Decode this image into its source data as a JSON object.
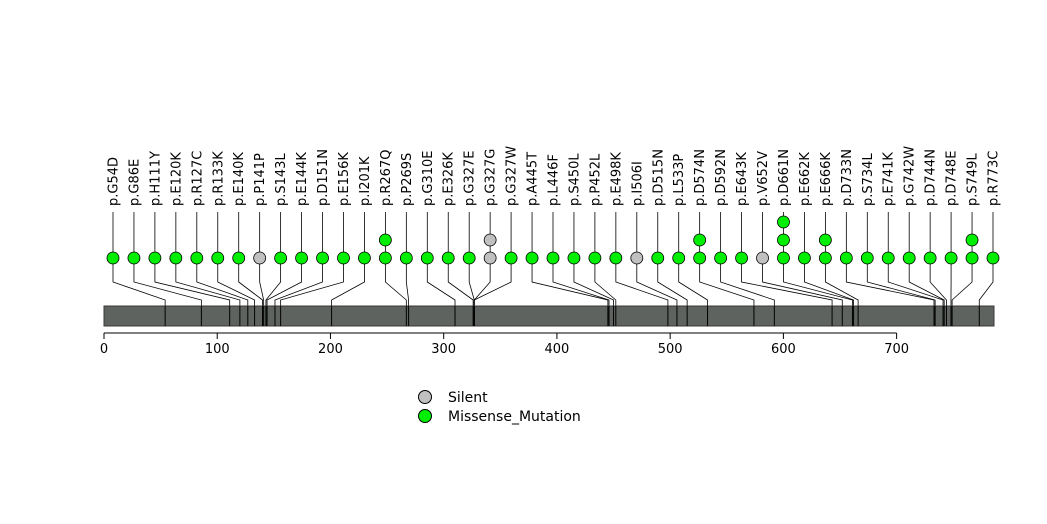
{
  "chart_data": {
    "type": "lollipop",
    "title": "",
    "xlabel": "",
    "ylabel": "",
    "protein_length": 786,
    "xlim": [
      0,
      786
    ],
    "x_ticks": [
      0,
      100,
      200,
      300,
      400,
      500,
      600,
      700
    ],
    "x_tick_labels": [
      "0",
      "100",
      "200",
      "300",
      "400",
      "500",
      "600",
      "700"
    ],
    "legend_position": "bottom-center",
    "legend": [
      {
        "name": "Silent",
        "color": "#c0c0c0"
      },
      {
        "name": "Missense_Mutation",
        "color": "#00ee00"
      }
    ],
    "mutations": [
      {
        "label": "p.G54D",
        "position": 54,
        "types": [
          "Missense_Mutation"
        ]
      },
      {
        "label": "p.G86E",
        "position": 86,
        "types": [
          "Missense_Mutation"
        ]
      },
      {
        "label": "p.H111Y",
        "position": 111,
        "types": [
          "Missense_Mutation"
        ]
      },
      {
        "label": "p.E120K",
        "position": 120,
        "types": [
          "Missense_Mutation"
        ]
      },
      {
        "label": "p.R127C",
        "position": 127,
        "types": [
          "Missense_Mutation"
        ]
      },
      {
        "label": "p.R133K",
        "position": 133,
        "types": [
          "Missense_Mutation"
        ]
      },
      {
        "label": "p.E140K",
        "position": 140,
        "types": [
          "Missense_Mutation"
        ]
      },
      {
        "label": "p.P141P",
        "position": 141,
        "types": [
          "Silent"
        ]
      },
      {
        "label": "p.S143L",
        "position": 143,
        "types": [
          "Missense_Mutation"
        ]
      },
      {
        "label": "p.E144K",
        "position": 144,
        "types": [
          "Missense_Mutation"
        ]
      },
      {
        "label": "p.D151N",
        "position": 151,
        "types": [
          "Missense_Mutation"
        ]
      },
      {
        "label": "p.E156K",
        "position": 156,
        "types": [
          "Missense_Mutation"
        ]
      },
      {
        "label": "p.I201K",
        "position": 201,
        "types": [
          "Missense_Mutation"
        ]
      },
      {
        "label": "p.R267Q",
        "position": 267,
        "types": [
          "Missense_Mutation",
          "Missense_Mutation"
        ]
      },
      {
        "label": "p.P269S",
        "position": 269,
        "types": [
          "Missense_Mutation"
        ]
      },
      {
        "label": "p.G310E",
        "position": 310,
        "types": [
          "Missense_Mutation"
        ]
      },
      {
        "label": "p.E326K",
        "position": 326,
        "types": [
          "Missense_Mutation"
        ]
      },
      {
        "label": "p.G327E",
        "position": 327,
        "types": [
          "Missense_Mutation"
        ]
      },
      {
        "label": "p.G327G",
        "position": 327,
        "types": [
          "Silent",
          "Silent"
        ]
      },
      {
        "label": "p.G327W",
        "position": 327,
        "types": [
          "Missense_Mutation"
        ]
      },
      {
        "label": "p.A445T",
        "position": 445,
        "types": [
          "Missense_Mutation"
        ]
      },
      {
        "label": "p.L446F",
        "position": 446,
        "types": [
          "Missense_Mutation"
        ]
      },
      {
        "label": "p.S450L",
        "position": 450,
        "types": [
          "Missense_Mutation"
        ]
      },
      {
        "label": "p.P452L",
        "position": 452,
        "types": [
          "Missense_Mutation"
        ]
      },
      {
        "label": "p.E498K",
        "position": 498,
        "types": [
          "Missense_Mutation"
        ]
      },
      {
        "label": "p.I506I",
        "position": 506,
        "types": [
          "Silent"
        ]
      },
      {
        "label": "p.D515N",
        "position": 515,
        "types": [
          "Missense_Mutation"
        ]
      },
      {
        "label": "p.L533P",
        "position": 533,
        "types": [
          "Missense_Mutation"
        ]
      },
      {
        "label": "p.D574N",
        "position": 574,
        "types": [
          "Missense_Mutation",
          "Missense_Mutation"
        ]
      },
      {
        "label": "p.D592N",
        "position": 592,
        "types": [
          "Missense_Mutation"
        ]
      },
      {
        "label": "p.E643K",
        "position": 643,
        "types": [
          "Missense_Mutation"
        ]
      },
      {
        "label": "p.V652V",
        "position": 652,
        "types": [
          "Silent"
        ]
      },
      {
        "label": "p.D661N",
        "position": 661,
        "types": [
          "Missense_Mutation",
          "Missense_Mutation",
          "Missense_Mutation"
        ]
      },
      {
        "label": "p.E662K",
        "position": 662,
        "types": [
          "Missense_Mutation"
        ]
      },
      {
        "label": "p.E666K",
        "position": 666,
        "types": [
          "Missense_Mutation",
          "Missense_Mutation"
        ]
      },
      {
        "label": "p.D733N",
        "position": 733,
        "types": [
          "Missense_Mutation"
        ]
      },
      {
        "label": "p.S734L",
        "position": 734,
        "types": [
          "Missense_Mutation"
        ]
      },
      {
        "label": "p.E741K",
        "position": 741,
        "types": [
          "Missense_Mutation"
        ]
      },
      {
        "label": "p.G742W",
        "position": 742,
        "types": [
          "Missense_Mutation"
        ]
      },
      {
        "label": "p.D744N",
        "position": 744,
        "types": [
          "Missense_Mutation"
        ]
      },
      {
        "label": "p.D748E",
        "position": 748,
        "types": [
          "Missense_Mutation"
        ]
      },
      {
        "label": "p.S749L",
        "position": 749,
        "types": [
          "Missense_Mutation",
          "Missense_Mutation"
        ]
      },
      {
        "label": "p.R773C",
        "position": 773,
        "types": [
          "Missense_Mutation"
        ]
      }
    ]
  }
}
